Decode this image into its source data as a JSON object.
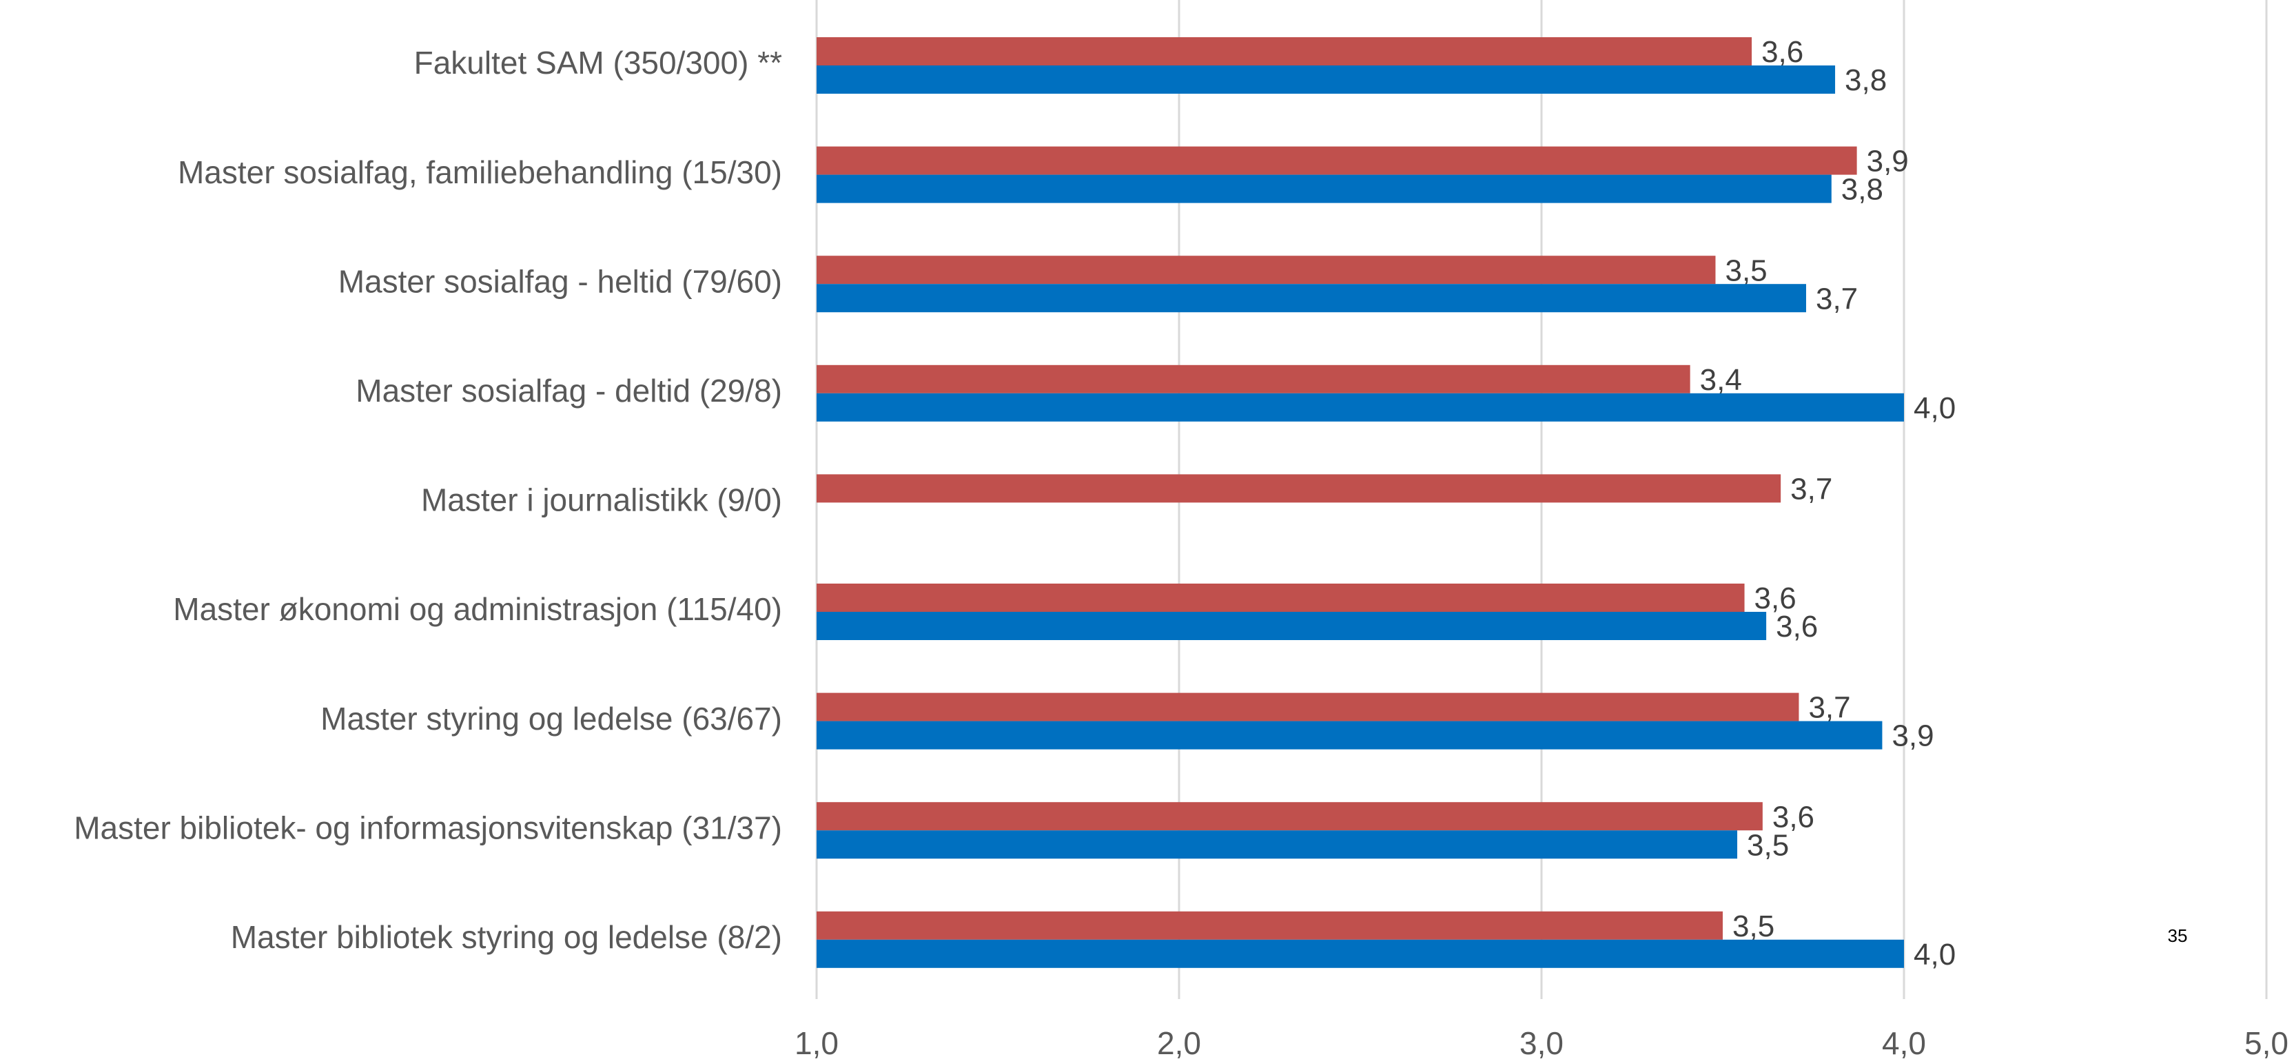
{
  "chart_data": {
    "type": "barh",
    "categories": [
      "Fakultet SAM (350/300) **",
      "Master sosialfag, familiebehandling (15/30)",
      "Master sosialfag - heltid (79/60)",
      "Master sosialfag - deltid (29/8)",
      "Master i journalistikk (9/0)",
      "Master økonomi og administrasjon (115/40)",
      "Master styring og ledelse (63/67)",
      "Master bibliotek- og informasjonsvitenskap (31/37)",
      "Master bibliotek styring og ledelse (8/2)"
    ],
    "series": [
      {
        "color": "#c0504d",
        "values": [
          3.58,
          3.87,
          3.48,
          3.41,
          3.66,
          3.56,
          3.71,
          3.61,
          3.5
        ],
        "value_labels": [
          "3,6",
          "3,9",
          "3,5",
          "3,4",
          "3,7",
          "3,6",
          "3,7",
          "3,6",
          "3,5"
        ]
      },
      {
        "color": "#0070c0",
        "values": [
          3.81,
          3.8,
          3.73,
          4.0,
          null,
          3.62,
          3.94,
          3.54,
          4.0
        ],
        "value_labels": [
          "3,8",
          "3,8",
          "3,7",
          "4,0",
          null,
          "3,6",
          "3,9",
          "3,5",
          "4,0"
        ]
      }
    ],
    "xlim": [
      1,
      5
    ],
    "xticks": [
      {
        "value": 1,
        "label": "1,0"
      },
      {
        "value": 2,
        "label": "2,0"
      },
      {
        "value": 3,
        "label": "3,0"
      },
      {
        "value": 4,
        "label": "4,0"
      },
      {
        "value": 5,
        "label": "5,0"
      }
    ],
    "grid": true,
    "annotation": "35"
  }
}
